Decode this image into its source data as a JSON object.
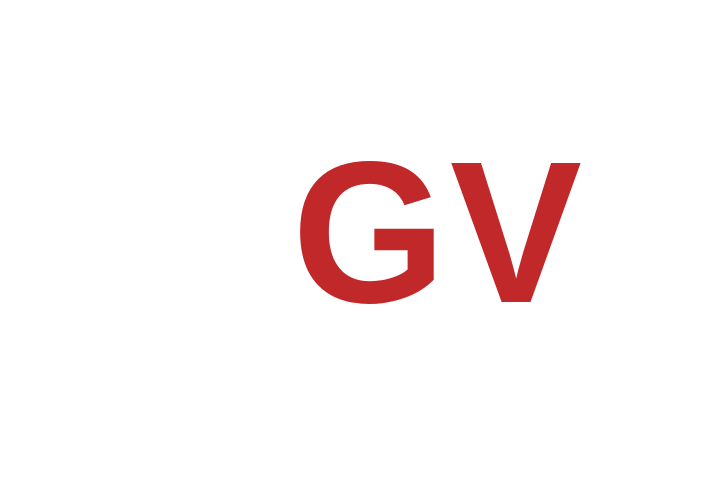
{
  "logo": {
    "text": "GV",
    "color": "#c0282a"
  },
  "background_color": "#ffffff"
}
